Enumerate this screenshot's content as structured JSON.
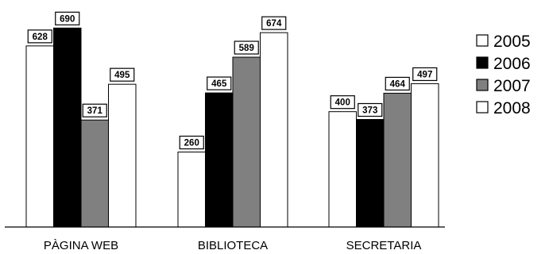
{
  "chart_data": {
    "type": "bar",
    "title": "",
    "xlabel": "",
    "ylabel": "",
    "categories": [
      "PÀGINA WEB",
      "BIBLIOTECA",
      "SECRETARIA"
    ],
    "ylim": [
      0,
      750
    ],
    "grid": false,
    "legend_position": "right",
    "series": [
      {
        "name": "2005",
        "color": "#ffffff",
        "values": [
          628,
          260,
          400
        ]
      },
      {
        "name": "2006",
        "color": "#000000",
        "values": [
          690,
          465,
          373
        ]
      },
      {
        "name": "2007",
        "color": "#808080",
        "values": [
          371,
          589,
          464
        ]
      },
      {
        "name": "2008",
        "color": "#ffffff",
        "values": [
          495,
          674,
          497
        ]
      }
    ]
  }
}
